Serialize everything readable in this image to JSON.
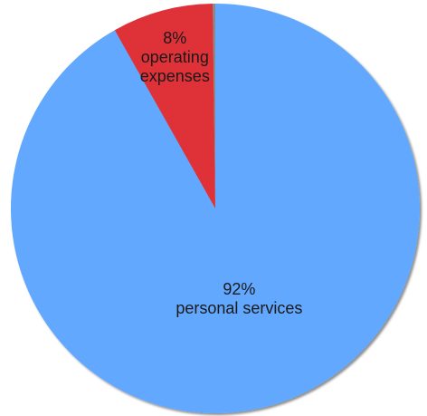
{
  "chart_data": {
    "type": "pie",
    "start_angle_deg": 0,
    "direction": "clockwise",
    "slices": [
      {
        "category": "personal services",
        "percent_label": "92%",
        "value": 92,
        "color": "#62a8ff"
      },
      {
        "category": "operating expenses",
        "percent_label": "8%",
        "value": 8,
        "color": "#de3037"
      },
      {
        "category": "",
        "percent_label": "",
        "value": 0.2,
        "color": "#8a8a8a"
      }
    ],
    "title": "",
    "legend": "none"
  }
}
